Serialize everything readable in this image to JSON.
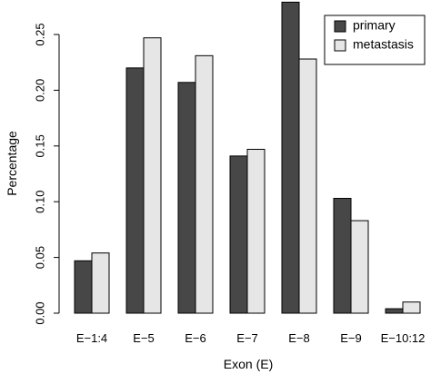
{
  "colors": {
    "primary": "#474747",
    "metastasis": "#e6e6e6",
    "stroke": "#000000"
  },
  "chart_data": {
    "type": "bar",
    "title": "",
    "xlabel": "Exon (E)",
    "ylabel": "Percentage",
    "categories": [
      "E−1:4",
      "E−5",
      "E−6",
      "E−7",
      "E−8",
      "E−9",
      "E−10:12"
    ],
    "series": [
      {
        "name": "primary",
        "values": [
          0.047,
          0.22,
          0.207,
          0.141,
          0.279,
          0.103,
          0.004
        ]
      },
      {
        "name": "metastasis",
        "values": [
          0.054,
          0.247,
          0.231,
          0.147,
          0.228,
          0.083,
          0.01
        ]
      }
    ],
    "ylim": [
      0,
      0.28
    ],
    "yticks": [
      0.0,
      0.05,
      0.1,
      0.15,
      0.2,
      0.25
    ],
    "ytick_labels": [
      "0.00",
      "0.05",
      "0.10",
      "0.15",
      "0.20",
      "0.25"
    ],
    "grid": false,
    "legend_position": "top-right"
  }
}
